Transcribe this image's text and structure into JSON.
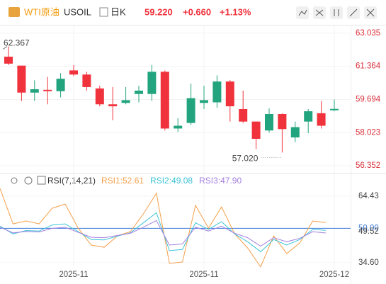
{
  "header": {
    "name": "WTI原油",
    "symbol": "USOIL",
    "period": "日K",
    "price": "59.220",
    "change": "+0.660",
    "change_pct": "+1.13%"
  },
  "chart_data": [
    {
      "type": "candlestick",
      "categories": [
        null,
        null,
        null,
        null,
        null,
        "2025-11",
        null,
        null,
        null,
        null,
        null,
        null,
        null,
        null,
        null,
        "2025-11",
        null,
        null,
        null,
        null,
        null,
        null,
        null,
        null,
        null,
        "2025-12"
      ],
      "open": [
        61.85,
        61.4,
        60.04,
        60.18,
        60.11,
        61.16,
        60.95,
        60.25,
        59.45,
        59.52,
        59.97,
        59.97,
        61.09,
        58.23,
        58.51,
        59.52,
        59.55,
        60.6,
        59.21,
        58.58,
        58.13,
        58.96,
        57.78,
        58.58,
        59.0,
        59.15
      ],
      "high": [
        62.367,
        61.4,
        60.66,
        60.83,
        61.02,
        61.43,
        61.09,
        60.39,
        60.32,
        60.32,
        60.39,
        61.43,
        61.16,
        58.75,
        60.49,
        60.39,
        60.91,
        60.67,
        60.14,
        58.58,
        59.24,
        58.99,
        58.58,
        59.21,
        59.62,
        59.69
      ],
      "low": [
        61.43,
        59.62,
        59.62,
        59.45,
        59.8,
        60.88,
        60.14,
        59.35,
        58.65,
        59.45,
        59.55,
        59.62,
        58.13,
        58.06,
        58.41,
        59.21,
        59.28,
        58.58,
        58.51,
        57.19,
        58.02,
        57.02,
        57.54,
        57.99,
        58.23,
        59.1
      ],
      "close": [
        61.5,
        60.04,
        60.21,
        60.11,
        60.74,
        60.95,
        60.32,
        59.45,
        59.35,
        59.66,
        60.14,
        61.09,
        58.23,
        58.37,
        59.76,
        59.66,
        60.6,
        59.35,
        58.58,
        57.71,
        58.96,
        58.2,
        58.3,
        59.1,
        58.37,
        59.22
      ],
      "up_color": "#22a47e",
      "down_color": "#f0323c",
      "max_label": "62.367",
      "min_label": "57.020",
      "ylim": [
        56.14,
        63.28
      ],
      "yticks": [
        63.035,
        61.364,
        59.694,
        58.023,
        56.352
      ],
      "grid": true
    },
    {
      "type": "line",
      "title": "RSI(7,14,21)",
      "series": [
        {
          "name": "RSI1:52.61",
          "color": "#f5a04b",
          "values": [
            67.9,
            52.0,
            53.3,
            52.0,
            59.0,
            60.9,
            50.1,
            42.5,
            41.5,
            46.6,
            48.5,
            56.5,
            65.7,
            34.3,
            34.9,
            60.3,
            50.1,
            59.6,
            47.6,
            41.2,
            32.7,
            46.6,
            38.7,
            43.4,
            53.3,
            52.61
          ]
        },
        {
          "name": "RSI2:49.08",
          "color": "#3cc3d6",
          "values": [
            51.0,
            47.5,
            49.0,
            48.8,
            51.5,
            52.0,
            48.5,
            45.0,
            44.8,
            46.5,
            48.0,
            52.5,
            57.0,
            40.0,
            40.5,
            52.5,
            49.5,
            53.0,
            47.5,
            44.0,
            39.5,
            45.0,
            42.5,
            45.0,
            49.5,
            49.08
          ]
        },
        {
          "name": "RSI3:47.90",
          "color": "#a47fe0",
          "values": [
            50.5,
            48.0,
            48.6,
            48.4,
            50.0,
            50.5,
            48.2,
            46.0,
            45.8,
            46.8,
            47.8,
            50.5,
            53.5,
            42.5,
            43.0,
            50.5,
            48.8,
            51.0,
            47.8,
            45.8,
            42.0,
            45.8,
            44.0,
            45.5,
            48.5,
            47.9
          ]
        }
      ],
      "ylim": [
        31.7,
        69.2
      ],
      "yticks": [
        64.43,
        {
          "value": 50,
          "label": "50.00"
        },
        {
          "value": 34.6,
          "label": "34.60"
        }
      ],
      "markers": [
        49.52
      ],
      "level_color": "#3c78d8"
    }
  ]
}
